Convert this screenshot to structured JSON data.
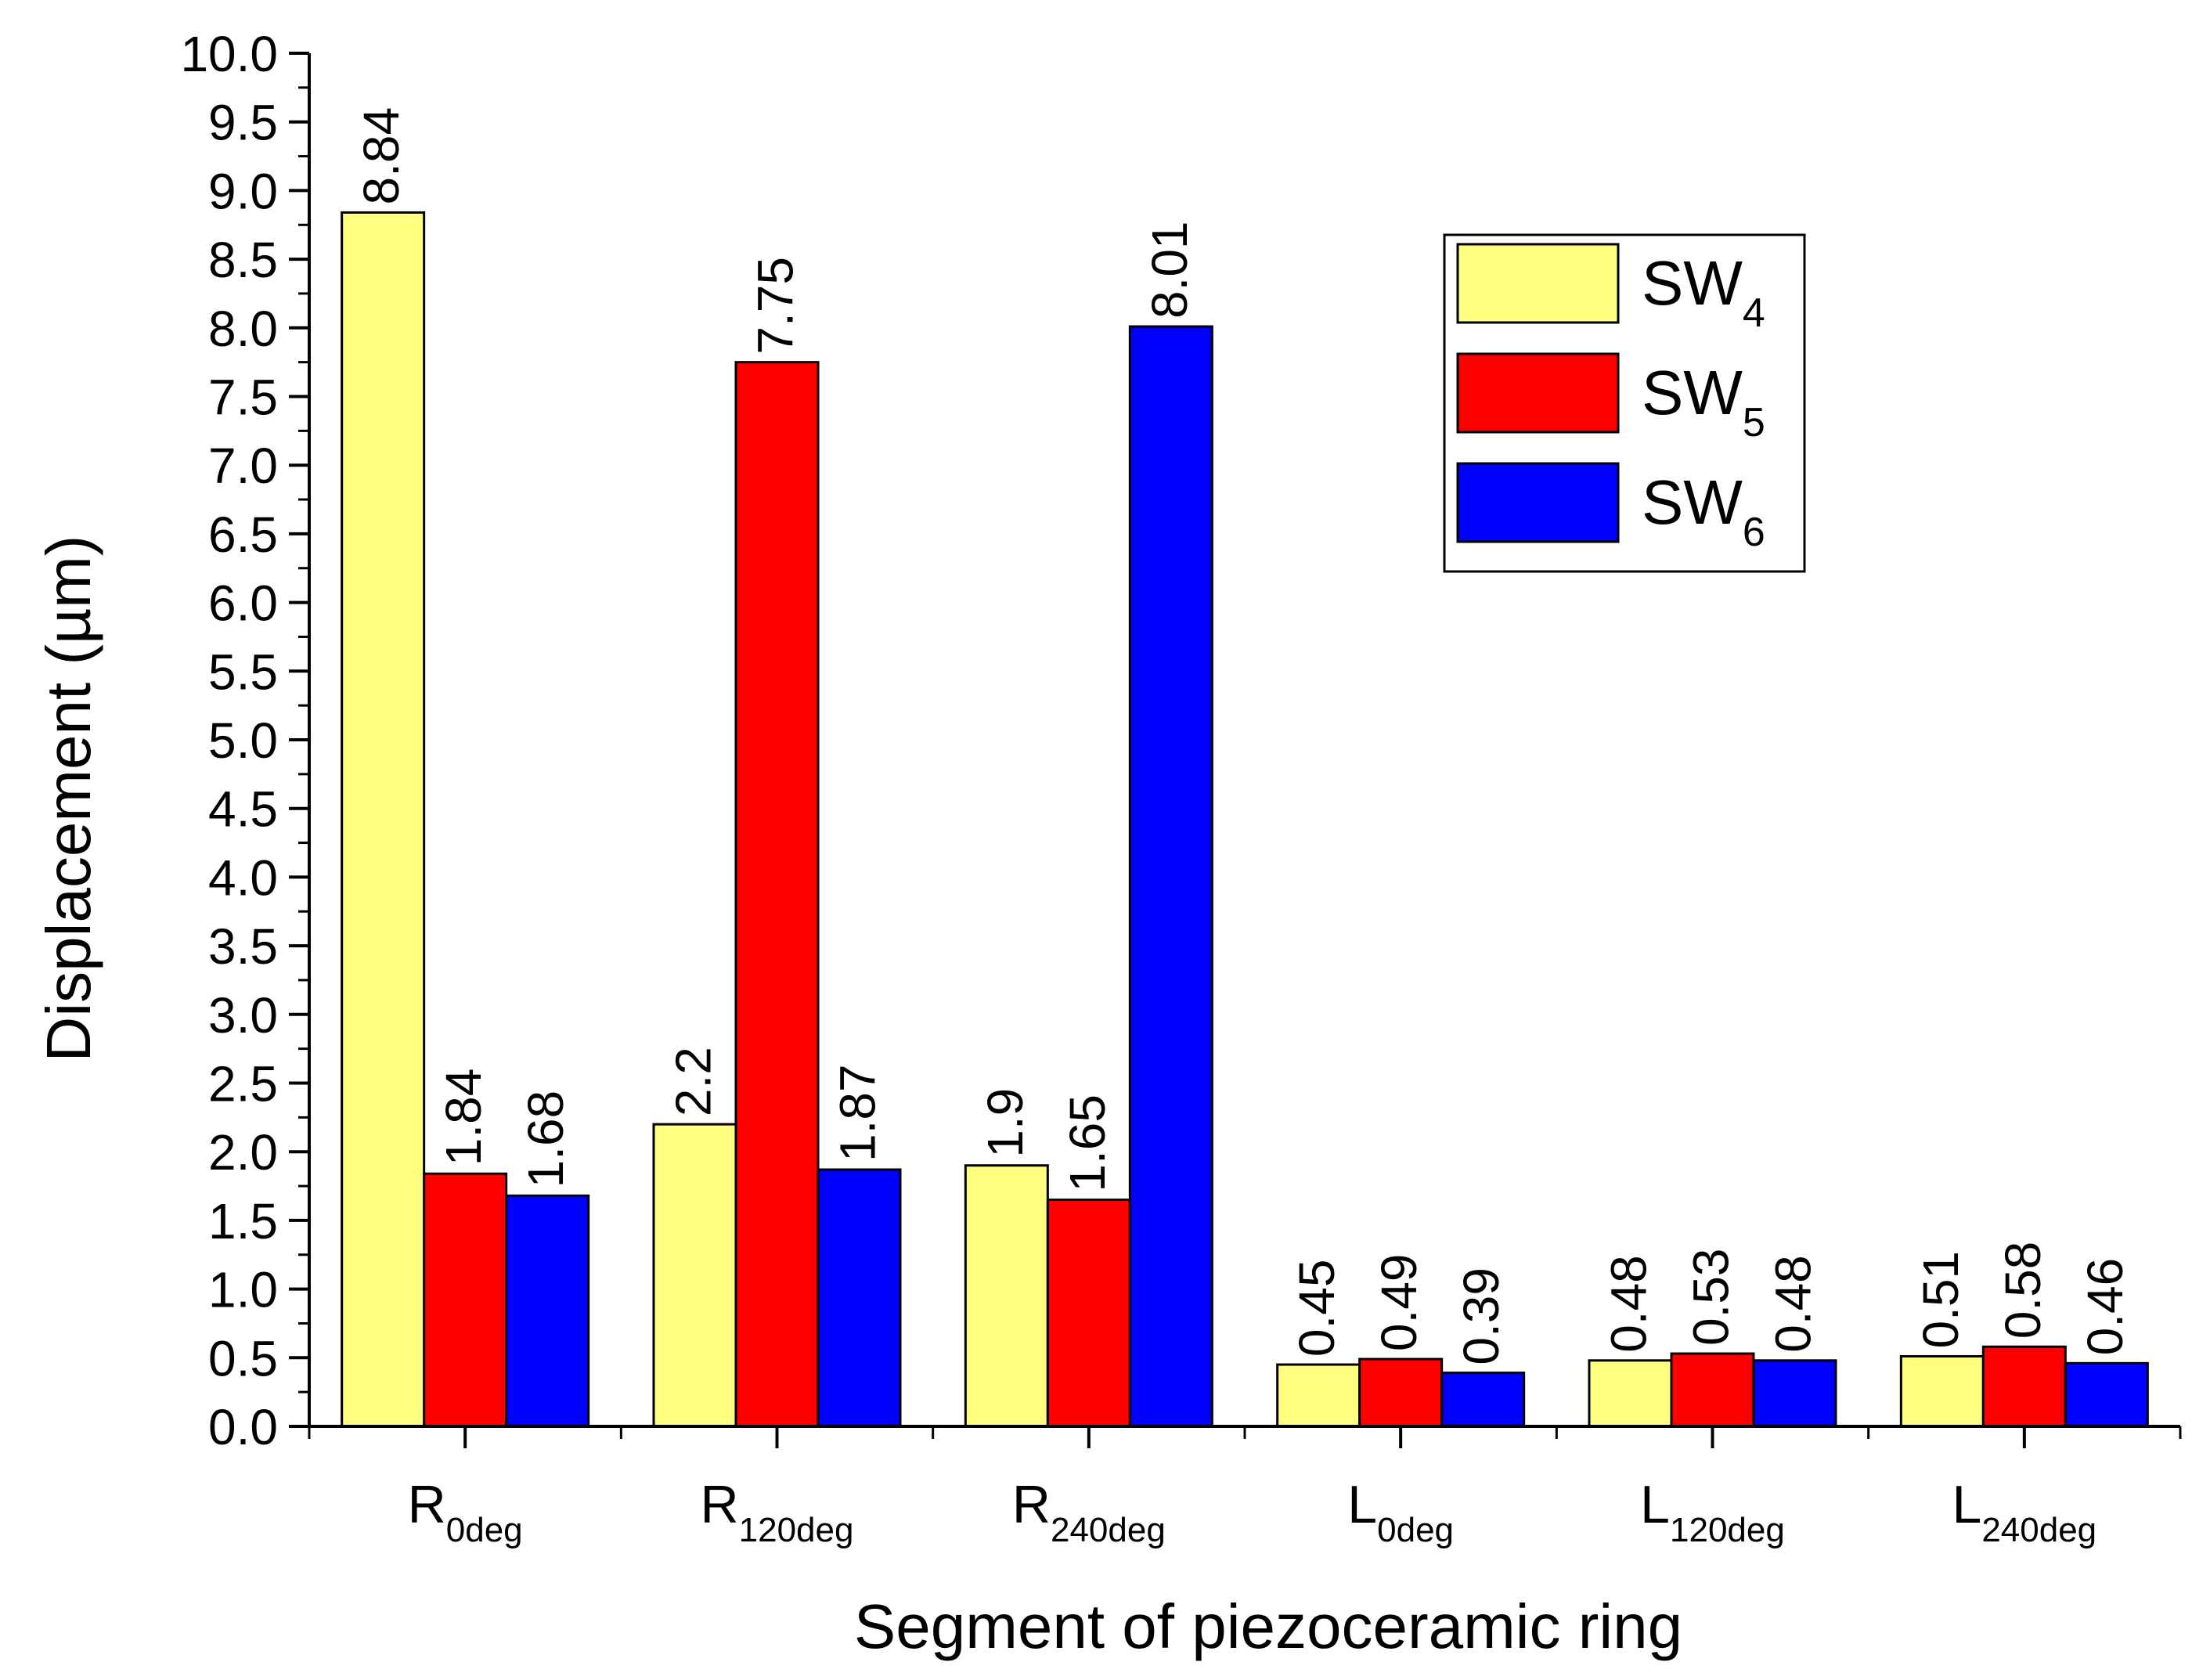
{
  "chart_data": {
    "type": "bar",
    "title": "",
    "xlabel": "Segment of piezoceramic ring",
    "ylabel": "Displacement (µm)",
    "ylim": [
      0,
      10
    ],
    "ytick_step": 0.5,
    "ytick_labels": [
      "0.0",
      "0.5",
      "1.0",
      "1.5",
      "2.0",
      "2.5",
      "3.0",
      "3.5",
      "4.0",
      "4.5",
      "5.0",
      "5.5",
      "6.0",
      "6.5",
      "7.0",
      "7.5",
      "8.0",
      "8.5",
      "9.0",
      "9.5",
      "10.0"
    ],
    "categories": [
      {
        "base": "R",
        "sub": "0deg"
      },
      {
        "base": "R",
        "sub": "120deg"
      },
      {
        "base": "R",
        "sub": "240deg"
      },
      {
        "base": "L",
        "sub": "0deg"
      },
      {
        "base": "L",
        "sub": "120deg"
      },
      {
        "base": "L",
        "sub": "240deg"
      }
    ],
    "series": [
      {
        "name": "SW",
        "sub": "4",
        "color": "#ffff80",
        "values": [
          8.84,
          2.2,
          1.9,
          0.45,
          0.48,
          0.51
        ],
        "labels": [
          "8.84",
          "2.2",
          "1.9",
          "0.45",
          "0.48",
          "0.51"
        ]
      },
      {
        "name": "SW",
        "sub": "5",
        "color": "#ff0000",
        "values": [
          1.84,
          7.75,
          1.65,
          0.49,
          0.53,
          0.58
        ],
        "labels": [
          "1.84",
          "7.75",
          "1.65",
          "0.49",
          "0.53",
          "0.58"
        ]
      },
      {
        "name": "SW",
        "sub": "6",
        "color": "#0000ff",
        "values": [
          1.68,
          1.87,
          8.01,
          0.39,
          0.48,
          0.46
        ],
        "labels": [
          "1.68",
          "1.87",
          "8.01",
          "0.39",
          "0.48",
          "0.46"
        ]
      }
    ],
    "legend_position": "top-right",
    "grid": false
  }
}
